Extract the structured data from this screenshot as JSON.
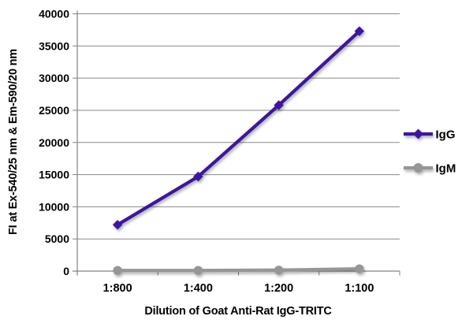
{
  "chart_data": {
    "type": "line",
    "title": "",
    "categories": [
      "1:800",
      "1:400",
      "1:200",
      "1:100"
    ],
    "series": [
      {
        "name": "IgG",
        "values": [
          7200,
          14700,
          25800,
          37300
        ],
        "color": "#3d12a0",
        "marker": "diamond"
      },
      {
        "name": "IgM",
        "values": [
          100,
          100,
          150,
          350
        ],
        "color": "#969696",
        "marker": "circle"
      }
    ],
    "xlabel": "Dilution of Goat Anti-Rat IgG-TRITC",
    "ylabel": "FI at Ex-540/25 nm & Em-590/20 nm",
    "ylim": [
      0,
      40000
    ],
    "yticks": [
      0,
      5000,
      10000,
      15000,
      20000,
      25000,
      30000,
      35000,
      40000
    ],
    "grid": true,
    "legend_position": "right"
  },
  "style": {
    "axis_color": "#828282",
    "grid_color": "#8a8a8a",
    "text_color": "#000000",
    "background": "#ffffff"
  }
}
